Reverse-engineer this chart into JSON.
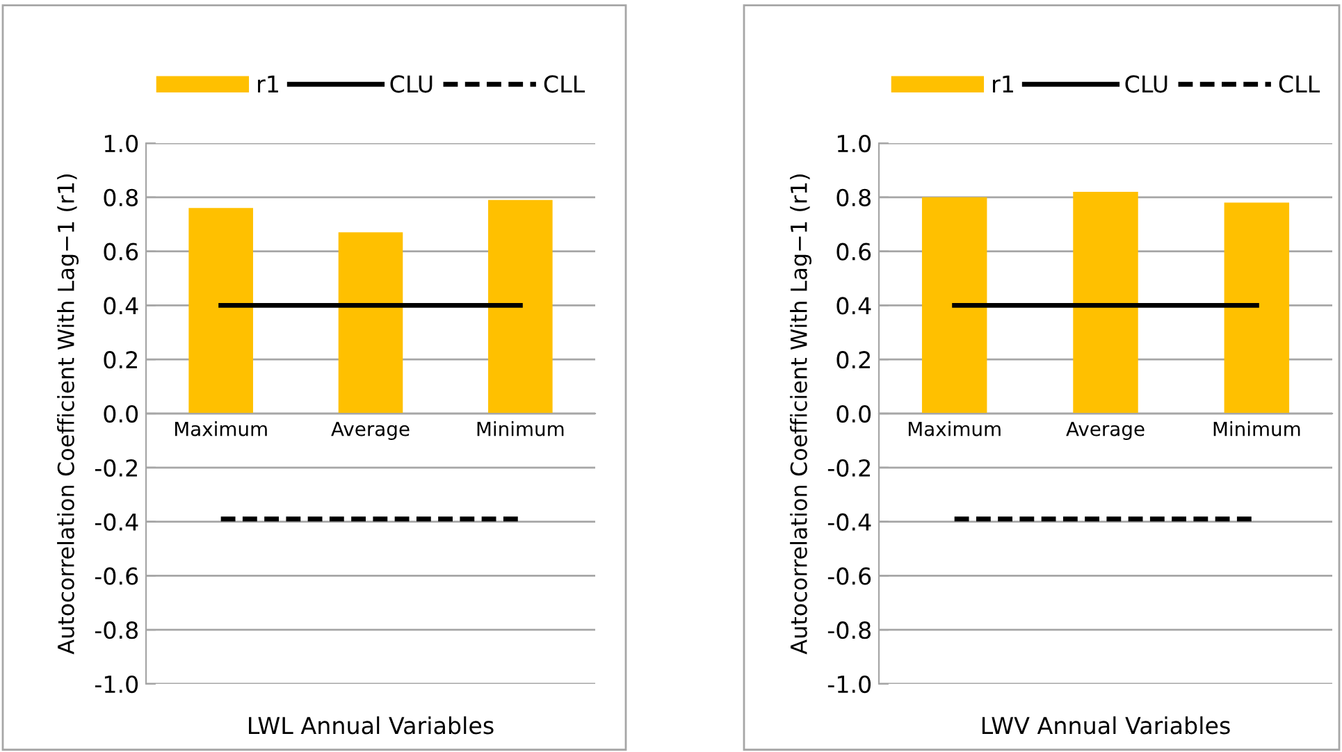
{
  "chart_data": [
    {
      "type": "bar",
      "xlabel": "LWL Annual Variables",
      "ylabel": "Autocorrelation Coefficient With Lag−1 (r1)",
      "categories": [
        "Maximum",
        "Average",
        "Minimum"
      ],
      "ylim": [
        -1.0,
        1.0
      ],
      "yticks": [
        {
          "value": -1.0,
          "label": "-1.0"
        },
        {
          "value": -0.8,
          "label": "-0.8"
        },
        {
          "value": -0.6,
          "label": "-0.6"
        },
        {
          "value": -0.4,
          "label": "-0.4"
        },
        {
          "value": -0.2,
          "label": "-0.2"
        },
        {
          "value": 0.0,
          "label": "0.0"
        },
        {
          "value": 0.2,
          "label": "0.2"
        },
        {
          "value": 0.4,
          "label": "0.4"
        },
        {
          "value": 0.6,
          "label": "0.6"
        },
        {
          "value": 0.8,
          "label": "0.8"
        },
        {
          "value": 1.0,
          "label": "1.0"
        }
      ],
      "grid": "y",
      "legend": "top",
      "series": [
        {
          "name": "r1",
          "color": "#ffc000",
          "values": [
            0.76,
            0.67,
            0.79
          ]
        },
        {
          "name": "CLU",
          "type": "line",
          "color": "#000000",
          "line_style": "solid",
          "values": [
            0.4,
            0.4,
            0.4
          ]
        },
        {
          "name": "CLL",
          "type": "line",
          "color": "#000000",
          "line_style": "dashed",
          "values": [
            -0.39,
            -0.39,
            -0.39
          ]
        }
      ]
    },
    {
      "type": "bar",
      "xlabel": "LWV Annual Variables",
      "ylabel": "Autocorrelation Coefficient With Lag−1 (r1)",
      "categories": [
        "Maximum",
        "Average",
        "Minimum"
      ],
      "ylim": [
        -1.0,
        1.0
      ],
      "yticks": [
        {
          "value": -1.0,
          "label": "-1.0"
        },
        {
          "value": -0.8,
          "label": "-0.8"
        },
        {
          "value": -0.6,
          "label": "-0.6"
        },
        {
          "value": -0.4,
          "label": "-0.4"
        },
        {
          "value": -0.2,
          "label": "-0.2"
        },
        {
          "value": 0.0,
          "label": "0.0"
        },
        {
          "value": 0.2,
          "label": "0.2"
        },
        {
          "value": 0.4,
          "label": "0.4"
        },
        {
          "value": 0.6,
          "label": "0.6"
        },
        {
          "value": 0.8,
          "label": "0.8"
        },
        {
          "value": 1.0,
          "label": "1.0"
        }
      ],
      "grid": "y",
      "legend": "top",
      "series": [
        {
          "name": "r1",
          "color": "#ffc000",
          "values": [
            0.8,
            0.82,
            0.78
          ]
        },
        {
          "name": "CLU",
          "type": "line",
          "color": "#000000",
          "line_style": "solid",
          "values": [
            0.4,
            0.4,
            0.4
          ]
        },
        {
          "name": "CLL",
          "type": "line",
          "color": "#000000",
          "line_style": "dashed",
          "values": [
            -0.39,
            -0.39,
            -0.39
          ]
        }
      ]
    }
  ]
}
